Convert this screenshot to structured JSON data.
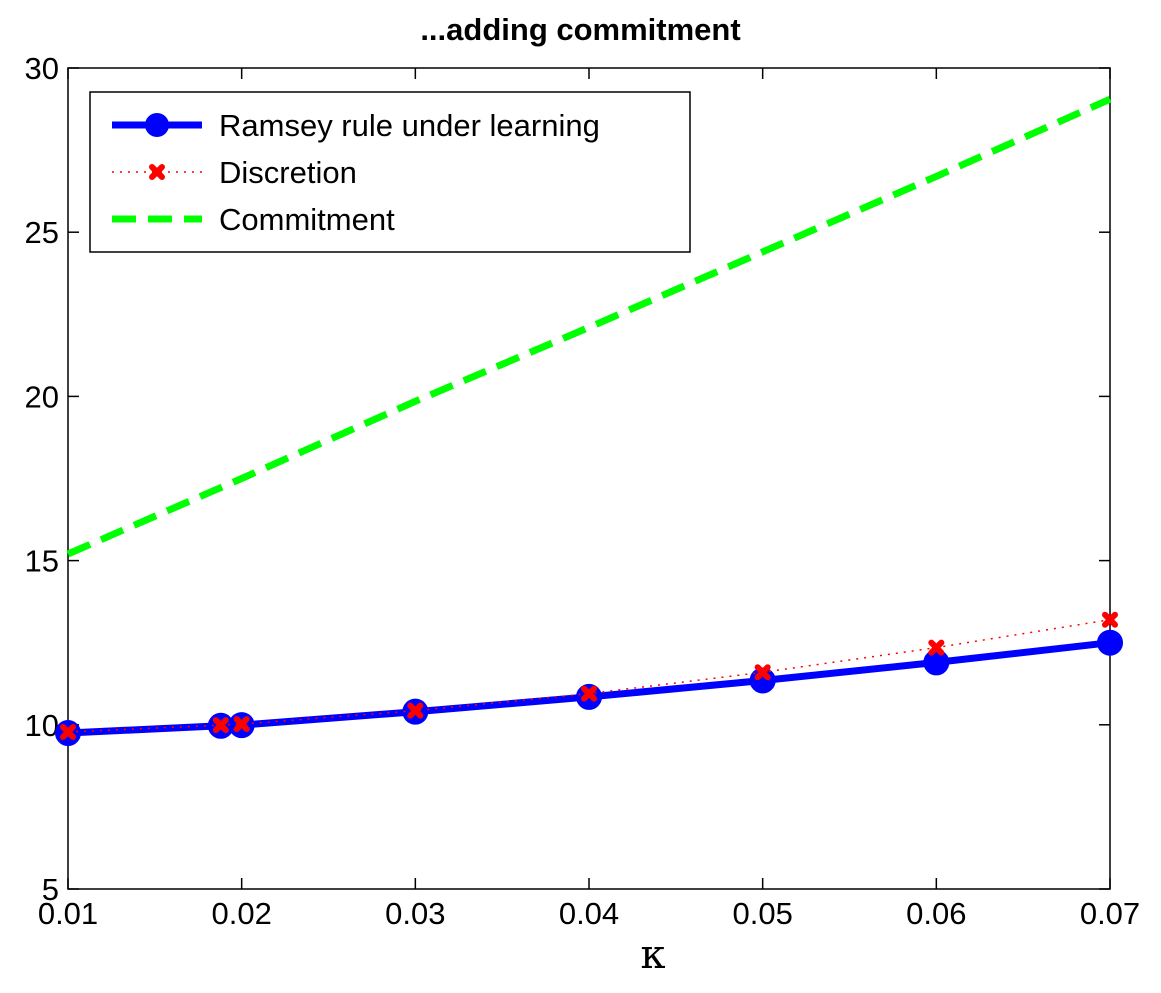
{
  "chart_data": {
    "type": "line",
    "title": "...adding commitment",
    "xlabel": "κ",
    "ylabel": "",
    "xlim": [
      0.01,
      0.07
    ],
    "ylim": [
      5,
      30
    ],
    "xticks": [
      "0.01",
      "0.02",
      "0.03",
      "0.04",
      "0.05",
      "0.06",
      "0.07"
    ],
    "yticks": [
      "5",
      "10",
      "15",
      "20",
      "25",
      "30"
    ],
    "legend_position": "top-left",
    "grid": false,
    "series": [
      {
        "name": "Ramsey rule under learning",
        "color": "#0000ff",
        "style": "solid-circle",
        "x": [
          0.01,
          0.0188,
          0.02,
          0.03,
          0.04,
          0.05,
          0.06,
          0.07
        ],
        "y": [
          9.75,
          9.97,
          9.99,
          10.4,
          10.85,
          11.35,
          11.9,
          12.5
        ]
      },
      {
        "name": "Discretion",
        "color": "#ff0000",
        "style": "dotted-x",
        "x": [
          0.01,
          0.0188,
          0.02,
          0.03,
          0.04,
          0.05,
          0.06,
          0.07
        ],
        "y": [
          9.78,
          9.99,
          10.02,
          10.43,
          10.95,
          11.6,
          12.35,
          13.2
        ]
      },
      {
        "name": "Commitment",
        "color": "#00ff00",
        "style": "dashed",
        "x": [
          0.01,
          0.02,
          0.03,
          0.04,
          0.05,
          0.06,
          0.07
        ],
        "y": [
          15.2,
          17.5,
          19.85,
          22.1,
          24.4,
          26.7,
          29.05
        ]
      }
    ]
  }
}
